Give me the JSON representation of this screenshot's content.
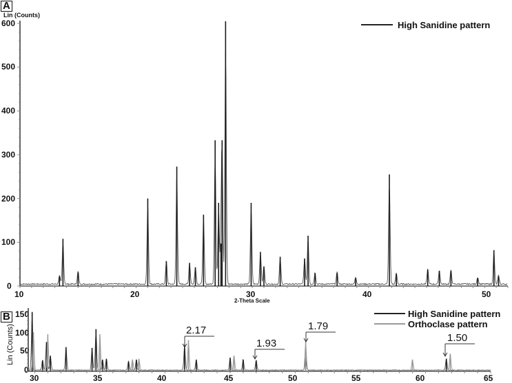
{
  "panels": {
    "A": {
      "label": "A",
      "ylabel": "Lin (Counts)",
      "xlabel": "2-Theta Scale",
      "yticks": [
        "600",
        "500",
        "400",
        "300",
        "200",
        "100",
        "0"
      ],
      "xticks": [
        "10",
        "20",
        "30",
        "40",
        "50"
      ],
      "legend": [
        {
          "name": "High Sanidine pattern",
          "color": "#222222"
        }
      ]
    },
    "B": {
      "label": "B",
      "ylabel": "Lin (Counts)",
      "yticks": [
        "150",
        "100",
        "50",
        "0"
      ],
      "xticks": [
        "30",
        "35",
        "40",
        "45",
        "50",
        "55",
        "60",
        "65"
      ],
      "legend": [
        {
          "name": "High Sanidine pattern",
          "color": "#222222"
        },
        {
          "name": "Orthoclase pattern",
          "color": "#999999"
        }
      ],
      "annotations": [
        "2.17",
        "1.93",
        "1.79",
        "1.50"
      ]
    }
  },
  "chart_data": [
    {
      "type": "line",
      "title": "A",
      "xlabel": "2-Theta Scale",
      "ylabel": "Lin (Counts)",
      "xlim": [
        10,
        52
      ],
      "ylim": [
        0,
        610
      ],
      "grid": false,
      "legend_position": "top-right",
      "series": [
        {
          "name": "High Sanidine pattern",
          "peaks": [
            {
              "x": 13.4,
              "y": 22
            },
            {
              "x": 13.7,
              "y": 108
            },
            {
              "x": 15.0,
              "y": 32
            },
            {
              "x": 21.0,
              "y": 200
            },
            {
              "x": 22.6,
              "y": 57
            },
            {
              "x": 23.5,
              "y": 273
            },
            {
              "x": 24.6,
              "y": 53
            },
            {
              "x": 25.1,
              "y": 43
            },
            {
              "x": 25.8,
              "y": 163
            },
            {
              "x": 26.8,
              "y": 333
            },
            {
              "x": 27.1,
              "y": 190
            },
            {
              "x": 27.3,
              "y": 97
            },
            {
              "x": 27.4,
              "y": 333
            },
            {
              "x": 27.7,
              "y": 605
            },
            {
              "x": 29.9,
              "y": 190
            },
            {
              "x": 30.7,
              "y": 78
            },
            {
              "x": 31.0,
              "y": 45
            },
            {
              "x": 32.4,
              "y": 67
            },
            {
              "x": 34.5,
              "y": 63
            },
            {
              "x": 34.8,
              "y": 115
            },
            {
              "x": 35.4,
              "y": 30
            },
            {
              "x": 37.3,
              "y": 30
            },
            {
              "x": 38.9,
              "y": 18
            },
            {
              "x": 41.8,
              "y": 255
            },
            {
              "x": 42.4,
              "y": 28
            },
            {
              "x": 45.1,
              "y": 38
            },
            {
              "x": 46.1,
              "y": 35
            },
            {
              "x": 47.1,
              "y": 35
            },
            {
              "x": 49.4,
              "y": 18
            },
            {
              "x": 50.8,
              "y": 82
            },
            {
              "x": 51.2,
              "y": 22
            }
          ]
        }
      ]
    },
    {
      "type": "line",
      "title": "B",
      "xlabel": "",
      "ylabel": "Lin (Counts)",
      "xlim": [
        29.5,
        65
      ],
      "ylim": [
        0,
        155
      ],
      "grid": false,
      "legend_position": "top-right",
      "annotations": [
        {
          "text": "2.17",
          "x": 41.5,
          "y": 68
        },
        {
          "text": "1.93",
          "x": 47.0,
          "y": 28
        },
        {
          "text": "1.79",
          "x": 50.8,
          "y": 78
        },
        {
          "text": "1.50",
          "x": 61.6,
          "y": 32
        }
      ],
      "series": [
        {
          "name": "High Sanidine pattern",
          "peaks": [
            {
              "x": 29.8,
              "y": 152
            },
            {
              "x": 30.6,
              "y": 28
            },
            {
              "x": 30.9,
              "y": 75
            },
            {
              "x": 31.2,
              "y": 40
            },
            {
              "x": 32.4,
              "y": 62
            },
            {
              "x": 34.4,
              "y": 60
            },
            {
              "x": 34.7,
              "y": 108
            },
            {
              "x": 35.2,
              "y": 30
            },
            {
              "x": 35.5,
              "y": 32
            },
            {
              "x": 37.2,
              "y": 25
            },
            {
              "x": 37.8,
              "y": 30
            },
            {
              "x": 41.5,
              "y": 68
            },
            {
              "x": 42.4,
              "y": 30
            },
            {
              "x": 45.0,
              "y": 35
            },
            {
              "x": 46.0,
              "y": 30
            },
            {
              "x": 47.0,
              "y": 28
            },
            {
              "x": 50.8,
              "y": 35
            },
            {
              "x": 61.6,
              "y": 32
            }
          ]
        },
        {
          "name": "Orthoclase pattern",
          "peaks": [
            {
              "x": 29.9,
              "y": 100
            },
            {
              "x": 31.0,
              "y": 95
            },
            {
              "x": 35.0,
              "y": 95
            },
            {
              "x": 37.5,
              "y": 30
            },
            {
              "x": 38.0,
              "y": 32
            },
            {
              "x": 41.8,
              "y": 80
            },
            {
              "x": 45.3,
              "y": 40
            },
            {
              "x": 50.8,
              "y": 78
            },
            {
              "x": 59.0,
              "y": 30
            },
            {
              "x": 61.9,
              "y": 45
            }
          ]
        }
      ]
    }
  ]
}
